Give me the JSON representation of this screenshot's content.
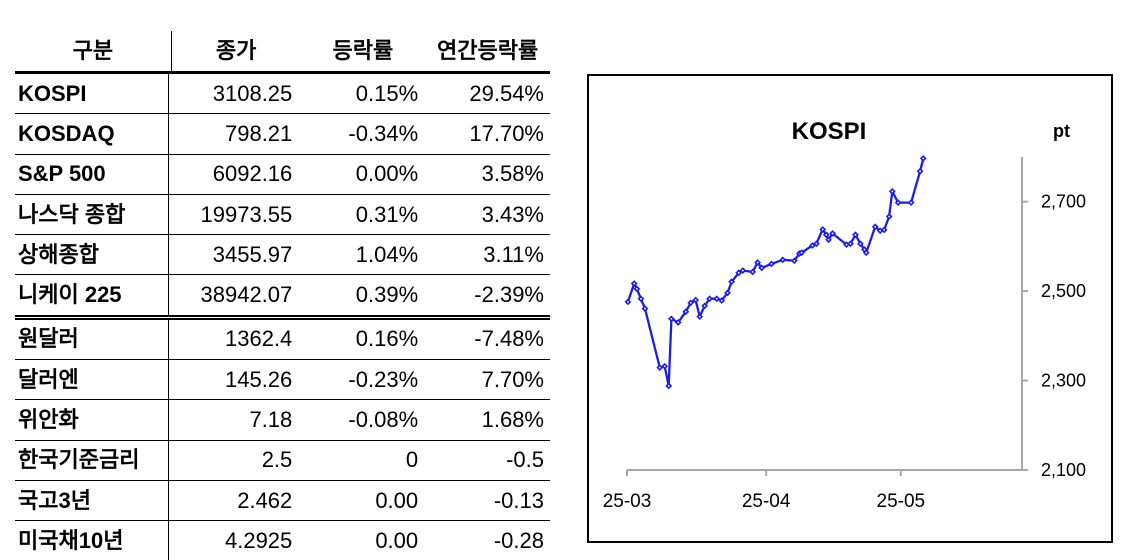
{
  "table": {
    "headers": [
      "구분",
      "종가",
      "등락률",
      "연간등락률"
    ],
    "rows": [
      {
        "label": "KOSPI",
        "close": "3108.25",
        "change": "0.15%",
        "ytd": "29.54%",
        "divider_after": false
      },
      {
        "label": "KOSDAQ",
        "close": "798.21",
        "change": "-0.34%",
        "ytd": "17.70%",
        "divider_after": false
      },
      {
        "label": "S&P 500",
        "close": "6092.16",
        "change": "0.00%",
        "ytd": "3.58%",
        "divider_after": false
      },
      {
        "label": "나스닥 종합",
        "close": "19973.55",
        "change": "0.31%",
        "ytd": "3.43%",
        "divider_after": false
      },
      {
        "label": "상해종합",
        "close": "3455.97",
        "change": "1.04%",
        "ytd": "3.11%",
        "divider_after": false
      },
      {
        "label": "니케이 225",
        "close": "38942.07",
        "change": "0.39%",
        "ytd": "-2.39%",
        "divider_after": true
      },
      {
        "label": "원달러",
        "close": "1362.4",
        "change": "0.16%",
        "ytd": "-7.48%",
        "divider_after": false
      },
      {
        "label": "달러엔",
        "close": "145.26",
        "change": "-0.23%",
        "ytd": "7.70%",
        "divider_after": false
      },
      {
        "label": "위안화",
        "close": "7.18",
        "change": "-0.08%",
        "ytd": "1.68%",
        "divider_after": false
      },
      {
        "label": "한국기준금리",
        "close": "2.5",
        "change": "0",
        "ytd": "-0.5",
        "divider_after": false
      },
      {
        "label": "국고3년",
        "close": "2.462",
        "change": "0.00",
        "ytd": "-0.13",
        "divider_after": false
      },
      {
        "label": "미국채10년",
        "close": "4.2925",
        "change": "0.00",
        "ytd": "-0.28",
        "divider_after": false
      }
    ]
  },
  "chart_data": {
    "type": "line",
    "title": "KOSPI",
    "unit_label": "pt",
    "series_name": "KOSPI",
    "x_axis": {
      "tick_labels": [
        "25-03",
        "25-04",
        "25-05"
      ],
      "tick_days": [
        0,
        31,
        61
      ],
      "domain_days": [
        0,
        88
      ],
      "note": "x values are calendar-day offsets from the 25-03 tick"
    },
    "y_axis": {
      "tick_labels": [
        "2,100",
        "2,300",
        "2,500",
        "2,700"
      ],
      "tick_values": [
        2100,
        2300,
        2500,
        2700
      ],
      "min": 2100,
      "max": 2800
    },
    "points": [
      [
        0.2,
        2476
      ],
      [
        1.6,
        2517
      ],
      [
        2.2,
        2505
      ],
      [
        3.1,
        2483
      ],
      [
        4.0,
        2461
      ],
      [
        7.3,
        2329
      ],
      [
        8.4,
        2332
      ],
      [
        9.3,
        2288
      ],
      [
        9.9,
        2438
      ],
      [
        11.4,
        2430
      ],
      [
        13.1,
        2454
      ],
      [
        14.2,
        2474
      ],
      [
        15.3,
        2480
      ],
      [
        16.2,
        2443
      ],
      [
        17.3,
        2467
      ],
      [
        18.4,
        2483
      ],
      [
        20.0,
        2483
      ],
      [
        21.1,
        2479
      ],
      [
        22.4,
        2496
      ],
      [
        23.3,
        2521
      ],
      [
        24.9,
        2541
      ],
      [
        25.8,
        2546
      ],
      [
        28.0,
        2543
      ],
      [
        29.1,
        2564
      ],
      [
        30.0,
        2552
      ],
      [
        32.2,
        2561
      ],
      [
        34.7,
        2570
      ],
      [
        37.3,
        2568
      ],
      [
        38.4,
        2584
      ],
      [
        38.9,
        2586
      ],
      [
        41.3,
        2602
      ],
      [
        42.2,
        2606
      ],
      [
        43.6,
        2638
      ],
      [
        44.4,
        2626
      ],
      [
        44.9,
        2615
      ],
      [
        45.8,
        2629
      ],
      [
        48.9,
        2604
      ],
      [
        49.8,
        2606
      ],
      [
        50.9,
        2626
      ],
      [
        52.0,
        2606
      ],
      [
        52.9,
        2593
      ],
      [
        53.3,
        2586
      ],
      [
        55.3,
        2644
      ],
      [
        56.4,
        2635
      ],
      [
        57.3,
        2637
      ],
      [
        58.4,
        2667
      ],
      [
        59.1,
        2723
      ],
      [
        60.4,
        2698
      ],
      [
        63.3,
        2698
      ],
      [
        65.3,
        2768
      ],
      [
        66.0,
        2797
      ]
    ],
    "colors": {
      "line": "#1e1edd",
      "axis": "#a6a6a6",
      "text": "#000000"
    }
  }
}
